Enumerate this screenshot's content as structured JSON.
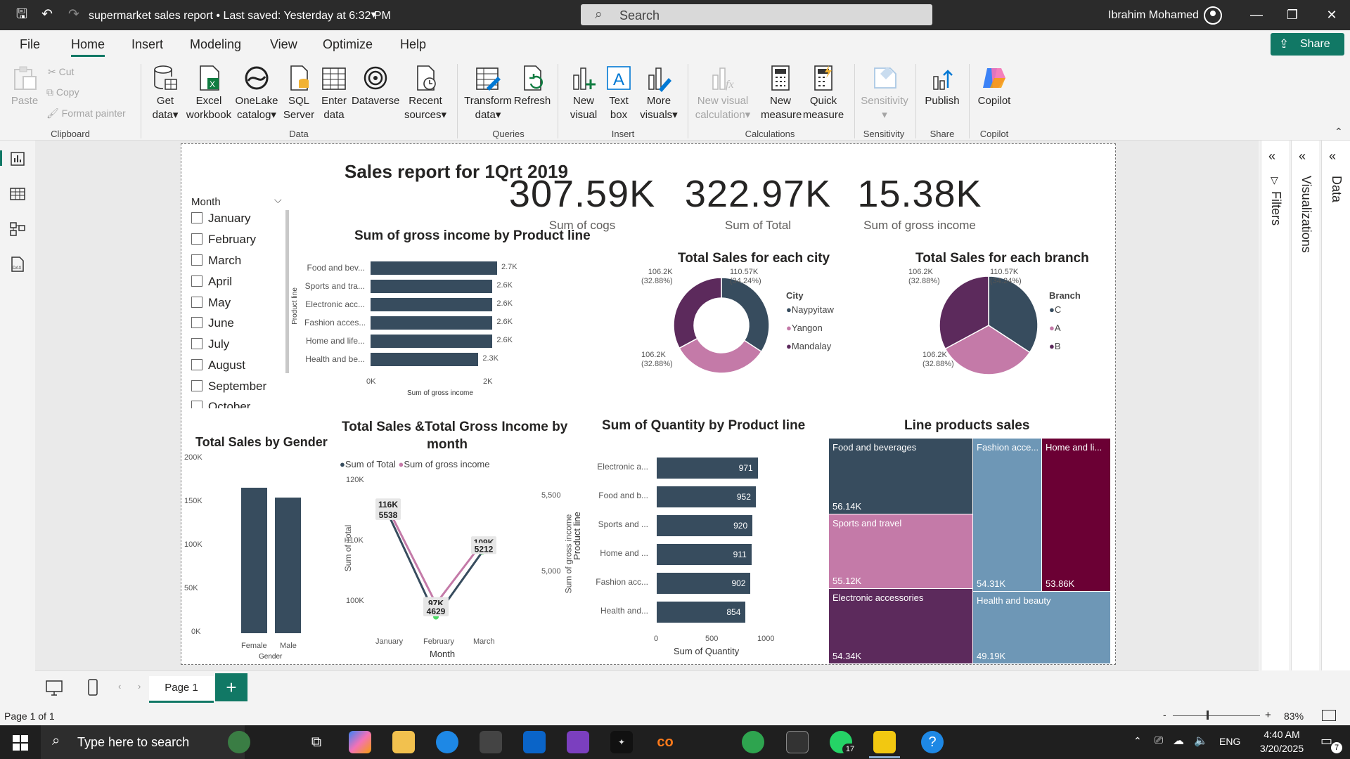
{
  "titlebar": {
    "title": "supermarket sales report • Last saved: Yesterday at 6:32 PM",
    "search_placeholder": "Search",
    "user": "Ibrahim Mohamed"
  },
  "menu": [
    "File",
    "Home",
    "Insert",
    "Modeling",
    "View",
    "Optimize",
    "Help"
  ],
  "share_label": "Share",
  "ribbon": {
    "clipboard": {
      "paste": "Paste",
      "cut": "Cut",
      "copy": "Copy",
      "format_painter": "Format painter",
      "group": "Clipboard"
    },
    "data": {
      "get_data": [
        "Get",
        "data"
      ],
      "excel": [
        "Excel",
        "workbook"
      ],
      "onelake": [
        "OneLake",
        "catalog"
      ],
      "sql": [
        "SQL",
        "Server"
      ],
      "enter": [
        "Enter",
        "data"
      ],
      "dataverse": "Dataverse",
      "recent": [
        "Recent",
        "sources"
      ],
      "group": "Data"
    },
    "queries": {
      "transform": [
        "Transform",
        "data"
      ],
      "refresh": "Refresh",
      "group": "Queries"
    },
    "insert": {
      "new_visual": [
        "New",
        "visual"
      ],
      "text_box": [
        "Text",
        "box"
      ],
      "more_visuals": [
        "More",
        "visuals"
      ],
      "group": "Insert"
    },
    "calculations": {
      "new_visual_calc": [
        "New visual",
        "calculation"
      ],
      "new_measure": [
        "New",
        "measure"
      ],
      "quick_measure": [
        "Quick",
        "measure"
      ],
      "group": "Calculations"
    },
    "sensitivity": {
      "label": "Sensitivity",
      "group": "Sensitivity"
    },
    "share": {
      "publish": "Publish",
      "group": "Share"
    },
    "copilot": {
      "label": "Copilot",
      "group": "Copilot"
    }
  },
  "panes": {
    "filters": "Filters",
    "visualizations": "Visualizations",
    "data": "Data"
  },
  "report": {
    "title": "Sales report for 1Qrt 2019",
    "slicer": {
      "title": "Month",
      "items": [
        "January",
        "February",
        "March",
        "April",
        "May",
        "June",
        "July",
        "August",
        "September",
        "October"
      ]
    },
    "kpis": [
      {
        "value": "307.59K",
        "label": "Sum of cogs"
      },
      {
        "value": "322.97K",
        "label": "Sum of Total"
      },
      {
        "value": "15.38K",
        "label": "Sum of gross income"
      }
    ],
    "gross_by_product": {
      "title": "Sum of gross income by Product line",
      "ylabel": "Product line",
      "xlabel": "Sum of gross income",
      "categories": [
        "Food and bev...",
        "Sports and tra...",
        "Electronic acc...",
        "Fashion acces...",
        "Home and life...",
        "Health and be..."
      ],
      "labels": [
        "2.7K",
        "2.6K",
        "2.6K",
        "2.6K",
        "2.6K",
        "2.3K"
      ],
      "ticks": [
        "0K",
        "2K"
      ]
    },
    "city_donut": {
      "title": "Total Sales for each city",
      "legend_title": "City",
      "legend": [
        "Naypyitaw",
        "Yangon",
        "Mandalay"
      ],
      "labels": [
        [
          "110.57K",
          "(34.24%)"
        ],
        [
          "106.2K",
          "(32.88%)"
        ],
        [
          "106.2K",
          "(32.88%)"
        ]
      ]
    },
    "branch_pie": {
      "title": "Total Sales for each branch",
      "legend_title": "Branch",
      "legend": [
        "C",
        "A",
        "B"
      ],
      "labels": [
        [
          "110.57K",
          "(34.24%)"
        ],
        [
          "106.2K",
          "(32.88%)"
        ],
        [
          "106.2K",
          "(32.88%)"
        ]
      ]
    },
    "gender_chart": {
      "title": "Total Sales by Gender",
      "xlabel": "Gender",
      "ticks": [
        "200K",
        "150K",
        "100K",
        "50K",
        "0K"
      ],
      "categories": [
        "Female",
        "Male"
      ]
    },
    "monthly_chart": {
      "title": [
        "Total Sales &Total Gross Income by",
        "month"
      ],
      "legend": [
        "Sum of Total",
        "Sum of gross income"
      ],
      "xlabel": "Month",
      "ylabel_left": "Sum of Total",
      "ylabel_right": "Sum of gross income",
      "left_ticks": [
        "120K",
        "110K",
        "100K"
      ],
      "right_ticks": [
        "5,500",
        "5,000"
      ],
      "categories": [
        "January",
        "February",
        "March"
      ],
      "labels_total": [
        "116K",
        "97K",
        "109K"
      ],
      "labels_gross": [
        "5538",
        "4629",
        "5212"
      ]
    },
    "quantity_chart": {
      "title": "Sum of Quantity by Product line",
      "xlabel": "Sum of Quantity",
      "ylabel": "Product line",
      "categories": [
        "Electronic a...",
        "Food and b...",
        "Sports and ...",
        "Home and ...",
        "Fashion acc...",
        "Health and..."
      ],
      "labels": [
        "971",
        "952",
        "920",
        "911",
        "902",
        "854"
      ],
      "ticks": [
        "0",
        "500",
        "1000"
      ]
    },
    "treemap": {
      "title": "Line products sales",
      "tiles": [
        {
          "name": "Food and beverages",
          "value": "56.14K"
        },
        {
          "name": "Sports and travel",
          "value": "55.12K"
        },
        {
          "name": "Electronic accessories",
          "value": "54.34K"
        },
        {
          "name": "Fashion acce...",
          "value": "54.31K"
        },
        {
          "name": "Home and li...",
          "value": "53.86K"
        },
        {
          "name": "Health and beauty",
          "value": "49.19K"
        }
      ]
    }
  },
  "chart_data": [
    {
      "type": "bar",
      "title": "Sum of gross income by Product line",
      "categories": [
        "Food and beverages",
        "Sports and travel",
        "Electronic accessories",
        "Fashion accessories",
        "Home and lifestyle",
        "Health and beauty"
      ],
      "values": [
        2700,
        2600,
        2600,
        2600,
        2600,
        2300
      ],
      "xlabel": "Sum of gross income",
      "ylabel": "Product line",
      "xlim": [
        0,
        2700
      ]
    },
    {
      "type": "pie",
      "title": "Total Sales for each city",
      "categories": [
        "Naypyitaw",
        "Yangon",
        "Mandalay"
      ],
      "values": [
        110.57,
        106.2,
        106.2
      ],
      "percent": [
        34.24,
        32.88,
        32.88
      ],
      "donut": true
    },
    {
      "type": "pie",
      "title": "Total Sales for each branch",
      "categories": [
        "C",
        "A",
        "B"
      ],
      "values": [
        110.57,
        106.2,
        106.2
      ],
      "percent": [
        34.24,
        32.88,
        32.88
      ]
    },
    {
      "type": "bar",
      "title": "Total Sales by Gender",
      "categories": [
        "Female",
        "Male"
      ],
      "values": [
        167000,
        156000
      ],
      "xlabel": "Gender",
      "ylim": [
        0,
        200000
      ]
    },
    {
      "type": "line",
      "title": "Total Sales &Total Gross Income by month",
      "categories": [
        "January",
        "February",
        "March"
      ],
      "series": [
        {
          "name": "Sum of Total",
          "values": [
            116000,
            97000,
            109000
          ],
          "ylim": [
            95000,
            122000
          ]
        },
        {
          "name": "Sum of gross income",
          "values": [
            5538,
            4629,
            5212
          ],
          "ylim": [
            4400,
            5800
          ]
        }
      ]
    },
    {
      "type": "bar",
      "title": "Sum of Quantity by Product line",
      "categories": [
        "Electronic accessories",
        "Food and beverages",
        "Sports and travel",
        "Home and lifestyle",
        "Fashion accessories",
        "Health and beauty"
      ],
      "values": [
        971,
        952,
        920,
        911,
        902,
        854
      ],
      "xlabel": "Sum of Quantity",
      "ylabel": "Product line",
      "xlim": [
        0,
        1000
      ]
    },
    {
      "type": "treemap",
      "title": "Line products sales",
      "categories": [
        "Food and beverages",
        "Sports and travel",
        "Electronic accessories",
        "Fashion accessories",
        "Home and lifestyle",
        "Health and beauty"
      ],
      "values": [
        56.14,
        55.12,
        54.34,
        54.31,
        53.86,
        49.19
      ]
    }
  ],
  "colors": {
    "dark": "#374c5e",
    "pink": "#c47aa8",
    "plum": "#5c2a5c",
    "teal": "#117865",
    "tm_blue": "#6e97b6",
    "tm_crimson": "#6b0034",
    "line_green": "#4cd964"
  },
  "bottom": {
    "page_tab": "Page 1",
    "page_status": "Page 1 of 1",
    "zoom": "83%"
  },
  "taskbar": {
    "search_placeholder": "Type here to search",
    "lang": "ENG",
    "time": "4:40 AM",
    "date": "3/20/2025",
    "whatsapp_badge": "17",
    "notif_badge": "7"
  }
}
